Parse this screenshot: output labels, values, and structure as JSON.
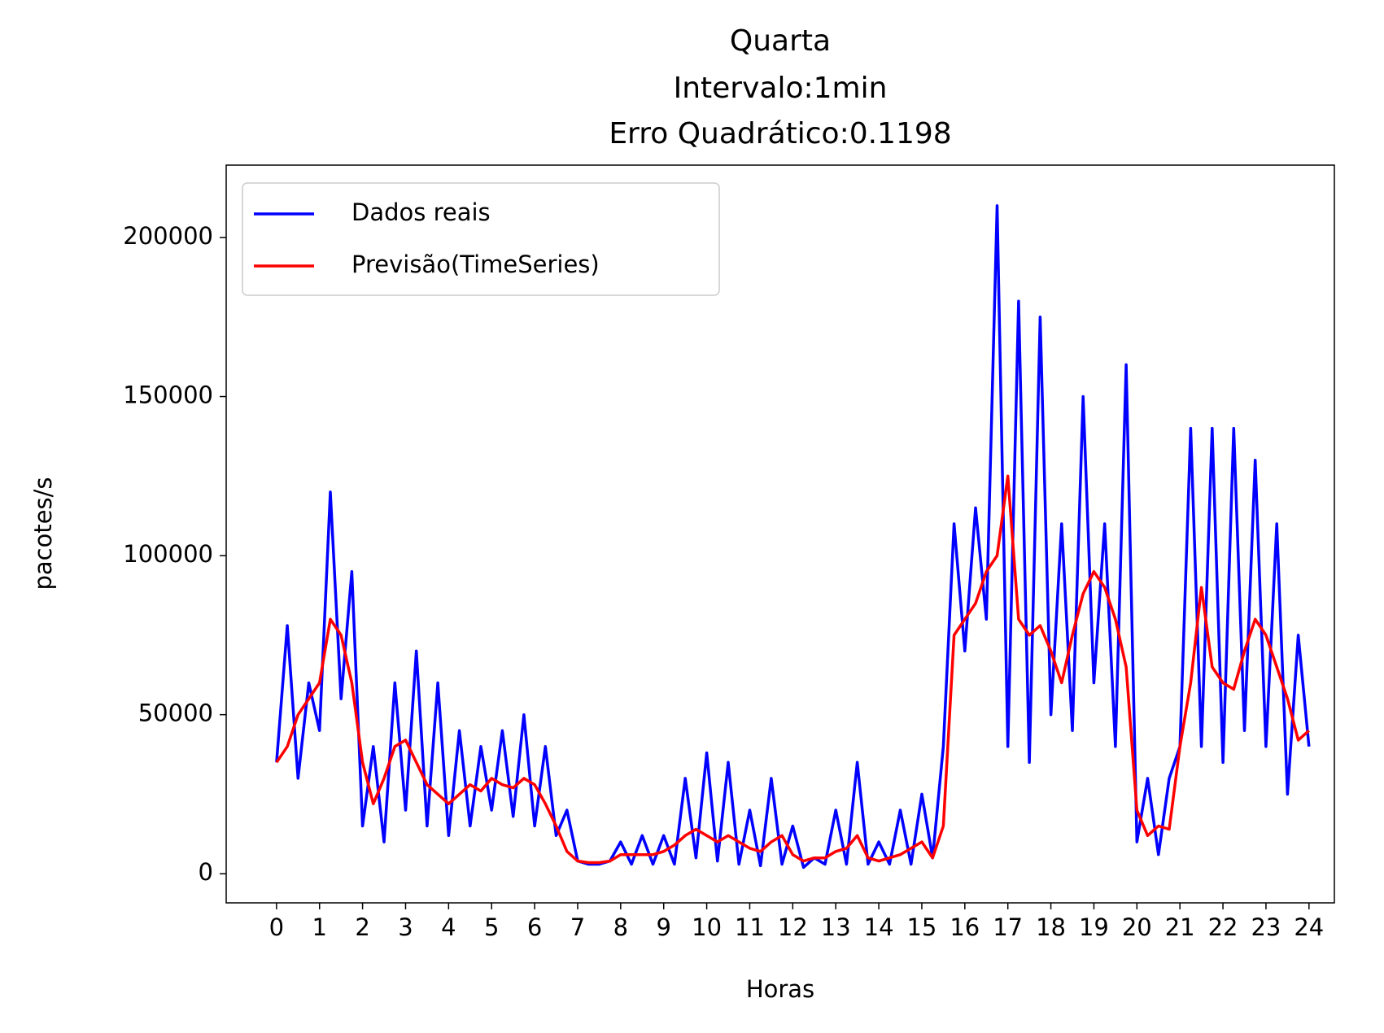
{
  "chart_data": {
    "type": "line",
    "title": [
      "Quarta",
      "Intervalo:1min",
      "Erro Quadrático:0.1198"
    ],
    "xlabel": "Horas",
    "ylabel": "pacotes/s",
    "x": [
      0,
      0.25,
      0.5,
      0.75,
      1,
      1.25,
      1.5,
      1.75,
      2,
      2.25,
      2.5,
      2.75,
      3,
      3.25,
      3.5,
      3.75,
      4,
      4.25,
      4.5,
      4.75,
      5,
      5.25,
      5.5,
      5.75,
      6,
      6.25,
      6.5,
      6.75,
      7,
      7.25,
      7.5,
      7.75,
      8,
      8.25,
      8.5,
      8.75,
      9,
      9.25,
      9.5,
      9.75,
      10,
      10.25,
      10.5,
      10.75,
      11,
      11.25,
      11.5,
      11.75,
      12,
      12.25,
      12.5,
      12.75,
      13,
      13.25,
      13.5,
      13.75,
      14,
      14.25,
      14.5,
      14.75,
      15,
      15.25,
      15.5,
      15.75,
      16,
      16.25,
      16.5,
      16.75,
      17,
      17.25,
      17.5,
      17.75,
      18,
      18.25,
      18.5,
      18.75,
      19,
      19.25,
      19.5,
      19.75,
      20,
      20.25,
      20.5,
      20.75,
      21,
      21.25,
      21.5,
      21.75,
      22,
      22.25,
      22.5,
      22.75,
      23,
      23.25,
      23.5,
      23.75,
      24
    ],
    "series": [
      {
        "name": "Dados reais",
        "color": "#0000ff",
        "values": [
          35000,
          78000,
          30000,
          60000,
          45000,
          120000,
          55000,
          95000,
          15000,
          40000,
          10000,
          60000,
          20000,
          70000,
          15000,
          60000,
          12000,
          45000,
          15000,
          40000,
          20000,
          45000,
          18000,
          50000,
          15000,
          40000,
          12000,
          20000,
          4000,
          3000,
          3000,
          4000,
          10000,
          3000,
          12000,
          3000,
          12000,
          3000,
          30000,
          5000,
          38000,
          4000,
          35000,
          3000,
          20000,
          2500,
          30000,
          3000,
          15000,
          2000,
          5000,
          3000,
          20000,
          3000,
          35000,
          3000,
          10000,
          3000,
          20000,
          3000,
          25000,
          5000,
          40000,
          110000,
          70000,
          115000,
          80000,
          210000,
          40000,
          180000,
          35000,
          175000,
          50000,
          110000,
          45000,
          150000,
          60000,
          110000,
          40000,
          160000,
          10000,
          30000,
          6000,
          30000,
          40000,
          140000,
          40000,
          140000,
          35000,
          140000,
          45000,
          130000,
          40000,
          110000,
          25000,
          75000,
          40000
        ]
      },
      {
        "name": "Previsão(TimeSeries)",
        "color": "#ff0000",
        "values": [
          35000,
          40000,
          50000,
          55000,
          60000,
          80000,
          75000,
          60000,
          35000,
          22000,
          30000,
          40000,
          42000,
          35000,
          28000,
          25000,
          22000,
          25000,
          28000,
          26000,
          30000,
          28000,
          27000,
          30000,
          28000,
          22000,
          15000,
          7000,
          4000,
          3500,
          3500,
          4000,
          6000,
          6000,
          6000,
          6000,
          7000,
          9000,
          12000,
          14000,
          12000,
          10000,
          12000,
          10000,
          8000,
          7000,
          10000,
          12000,
          6000,
          4000,
          5000,
          5000,
          7000,
          8000,
          12000,
          5000,
          4000,
          5000,
          6000,
          8000,
          10000,
          5000,
          15000,
          75000,
          80000,
          85000,
          95000,
          100000,
          125000,
          80000,
          75000,
          78000,
          70000,
          60000,
          75000,
          88000,
          95000,
          90000,
          80000,
          65000,
          20000,
          12000,
          15000,
          14000,
          40000,
          60000,
          90000,
          65000,
          60000,
          58000,
          70000,
          80000,
          75000,
          65000,
          55000,
          42000,
          45000
        ]
      }
    ],
    "xlim": [
      -1.17,
      24.59
    ],
    "ylim": [
      -9150,
      222750
    ],
    "xticks": [
      0,
      1,
      2,
      3,
      4,
      5,
      6,
      7,
      8,
      9,
      10,
      11,
      12,
      13,
      14,
      15,
      16,
      17,
      18,
      19,
      20,
      21,
      22,
      23,
      24
    ],
    "yticks": [
      0,
      50000,
      100000,
      150000,
      200000
    ],
    "legend": "upper left"
  }
}
